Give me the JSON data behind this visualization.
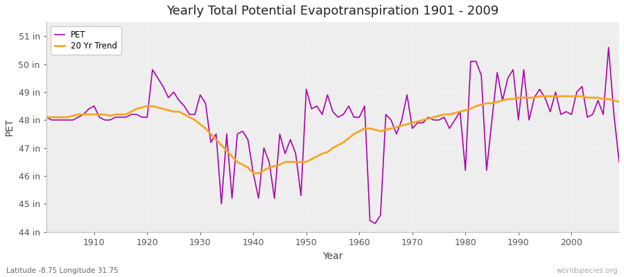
{
  "title": "Yearly Total Potential Evapotranspiration 1901 - 2009",
  "xlabel": "Year",
  "ylabel": "PET",
  "subtitle_lat": "Latitude -8.75 Longitude 31.75",
  "watermark": "worldspecies.org",
  "pet_color": "#aa00aa",
  "trend_color": "#f5a623",
  "fig_bg_color": "#ffffff",
  "plot_bg_color": "#eeeeee",
  "grid_color": "#ffffff",
  "ylim": [
    44.0,
    51.5
  ],
  "yticks": [
    44,
    45,
    46,
    47,
    48,
    49,
    50,
    51
  ],
  "xlim": [
    1901,
    2009
  ],
  "xticks": [
    1910,
    1920,
    1930,
    1940,
    1950,
    1960,
    1970,
    1980,
    1990,
    2000
  ],
  "years": [
    1901,
    1902,
    1903,
    1904,
    1905,
    1906,
    1907,
    1908,
    1909,
    1910,
    1911,
    1912,
    1913,
    1914,
    1915,
    1916,
    1917,
    1918,
    1919,
    1920,
    1921,
    1922,
    1923,
    1924,
    1925,
    1926,
    1927,
    1928,
    1929,
    1930,
    1931,
    1932,
    1933,
    1934,
    1935,
    1936,
    1937,
    1938,
    1939,
    1940,
    1941,
    1942,
    1943,
    1944,
    1945,
    1946,
    1947,
    1948,
    1949,
    1950,
    1951,
    1952,
    1953,
    1954,
    1955,
    1956,
    1957,
    1958,
    1959,
    1960,
    1961,
    1962,
    1963,
    1964,
    1965,
    1966,
    1967,
    1968,
    1969,
    1970,
    1971,
    1972,
    1973,
    1974,
    1975,
    1976,
    1977,
    1978,
    1979,
    1980,
    1981,
    1982,
    1983,
    1984,
    1985,
    1986,
    1987,
    1988,
    1989,
    1990,
    1991,
    1992,
    1993,
    1994,
    1995,
    1996,
    1997,
    1998,
    1999,
    2000,
    2001,
    2002,
    2003,
    2004,
    2005,
    2006,
    2007,
    2008,
    2009
  ],
  "pet_values": [
    48.1,
    48.0,
    48.0,
    48.0,
    48.0,
    48.0,
    48.1,
    48.2,
    48.4,
    48.5,
    48.1,
    48.0,
    48.0,
    48.1,
    48.1,
    48.1,
    48.2,
    48.2,
    48.1,
    48.1,
    49.8,
    49.5,
    49.2,
    48.8,
    49.0,
    48.7,
    48.5,
    48.2,
    48.2,
    48.9,
    48.6,
    47.2,
    47.5,
    45.0,
    47.5,
    45.2,
    47.5,
    47.6,
    47.3,
    46.1,
    45.2,
    47.0,
    46.5,
    45.2,
    47.5,
    46.8,
    47.3,
    46.8,
    45.3,
    49.1,
    48.4,
    48.5,
    48.2,
    48.9,
    48.3,
    48.1,
    48.2,
    48.5,
    48.1,
    48.1,
    48.5,
    44.4,
    44.3,
    44.6,
    48.2,
    48.0,
    47.5,
    48.0,
    48.9,
    47.7,
    47.9,
    47.9,
    48.1,
    48.0,
    48.0,
    48.1,
    47.7,
    48.0,
    48.3,
    46.2,
    50.1,
    50.1,
    49.6,
    46.2,
    48.0,
    49.7,
    48.7,
    49.5,
    49.8,
    48.0,
    49.8,
    48.0,
    48.8,
    49.1,
    48.8,
    48.3,
    49.0,
    48.2,
    48.3,
    48.2,
    49.0,
    49.2,
    48.1,
    48.2,
    48.7,
    48.2,
    50.6,
    48.2,
    46.5
  ],
  "trend_values": [
    48.1,
    48.1,
    48.1,
    48.1,
    48.1,
    48.15,
    48.2,
    48.2,
    48.2,
    48.2,
    48.2,
    48.2,
    48.15,
    48.2,
    48.2,
    48.2,
    48.3,
    48.4,
    48.45,
    48.5,
    48.5,
    48.45,
    48.4,
    48.35,
    48.3,
    48.3,
    48.2,
    48.1,
    48.0,
    47.85,
    47.7,
    47.5,
    47.3,
    47.1,
    46.9,
    46.7,
    46.5,
    46.4,
    46.3,
    46.1,
    46.1,
    46.2,
    46.3,
    46.35,
    46.4,
    46.5,
    46.5,
    46.5,
    46.5,
    46.5,
    46.6,
    46.7,
    46.8,
    46.85,
    47.0,
    47.1,
    47.2,
    47.35,
    47.5,
    47.6,
    47.7,
    47.7,
    47.65,
    47.6,
    47.65,
    47.7,
    47.75,
    47.8,
    47.85,
    47.9,
    47.95,
    48.0,
    48.05,
    48.1,
    48.15,
    48.2,
    48.2,
    48.25,
    48.3,
    48.35,
    48.4,
    48.5,
    48.55,
    48.6,
    48.6,
    48.65,
    48.7,
    48.75,
    48.75,
    48.8,
    48.8,
    48.8,
    48.8,
    48.85,
    48.85,
    48.85,
    48.85,
    48.85,
    48.85,
    48.85,
    48.85,
    48.85,
    48.8,
    48.8,
    48.8,
    48.75,
    48.75,
    48.7,
    48.65
  ]
}
